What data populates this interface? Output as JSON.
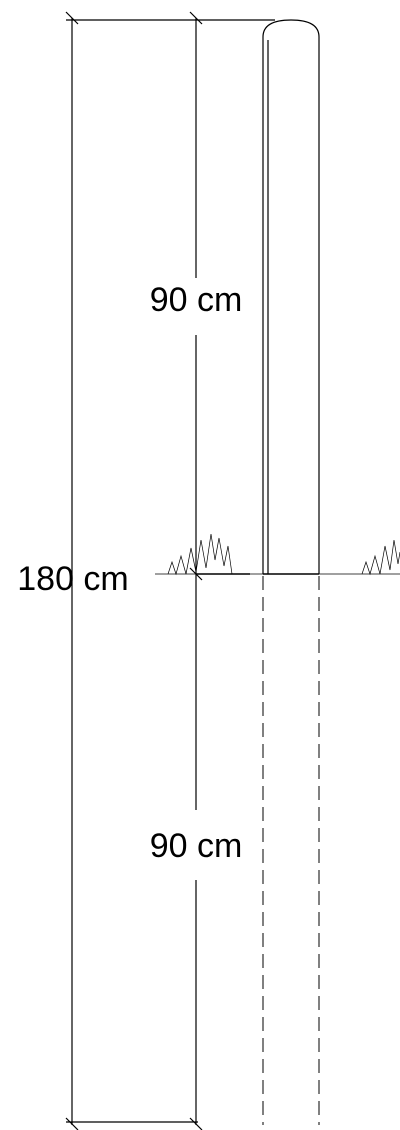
{
  "dimensions": {
    "upper_label": "90 cm",
    "lower_label": "90 cm",
    "total_label": "180 cm"
  },
  "colors": {
    "line": "#000000",
    "background": "#ffffff"
  }
}
